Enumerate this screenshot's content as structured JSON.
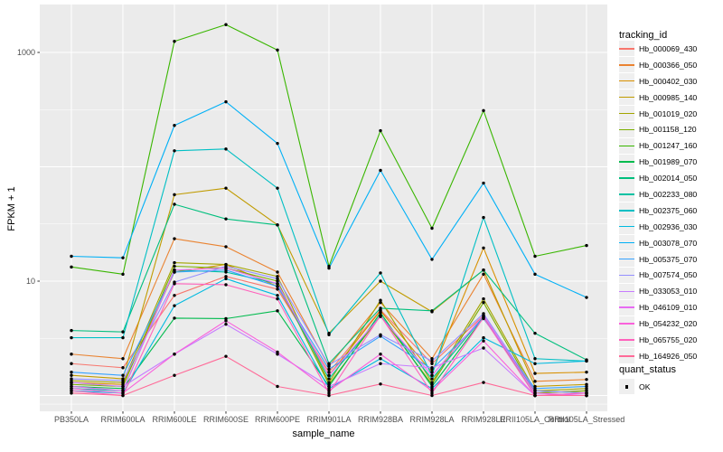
{
  "chart_data": {
    "type": "line",
    "title": "",
    "ylabel": "FPKM + 1",
    "xlabel": "sample_name",
    "y_scale": "log10",
    "ylim": [
      0.72,
      2600
    ],
    "y_tick_labels": [
      "1000",
      "10"
    ],
    "y_tick_values": [
      1000,
      10
    ],
    "y_gridlines_major": [
      1000,
      100,
      10,
      1
    ],
    "y_gridlines_minor": [
      316.2,
      31.62,
      3.162,
      0.84
    ],
    "grid": true,
    "legend_position": "right",
    "legend_title": "tracking_id",
    "point_legend": {
      "title": "quant_status",
      "items": [
        "OK"
      ]
    },
    "point_color": "#000000",
    "panel_bg": "#EBEBEB",
    "grid_color": "#FFFFFF",
    "tick_text_color": "#4D4D4D",
    "tick_mark_color": "#333333",
    "legend_key_bg": "#EFEFEF",
    "categories": [
      "PB350LA",
      "RRIM600LA",
      "RRIM600LE",
      "RRIM600SE",
      "RRIM600PE",
      "RRIM901LA",
      "RRIM928BA",
      "RRIM928LA",
      "RRIM928LE",
      "RRII105LA_Control",
      "RRII105LA_Stressed"
    ],
    "series": [
      {
        "name": "Hb_000069_430",
        "color": "#F8766D",
        "values": [
          1.9,
          1.75,
          7.5,
          11,
          8.5,
          1.6,
          5.6,
          1.9,
          5.0,
          1.05,
          1.1
        ]
      },
      {
        "name": "Hb_000366_050",
        "color": "#EA8331",
        "values": [
          2.3,
          2.1,
          23.5,
          20,
          12,
          1.8,
          6.5,
          2.1,
          11.5,
          1.33,
          1.38
        ]
      },
      {
        "name": "Hb_000402_030",
        "color": "#D89000",
        "values": [
          1.3,
          1.25,
          12,
          14,
          9,
          1.5,
          5.5,
          1.6,
          19.5,
          1.56,
          1.6
        ]
      },
      {
        "name": "Hb_000985_140",
        "color": "#C09B00",
        "values": [
          1.5,
          1.4,
          57,
          65,
          31,
          3.5,
          10,
          5.4,
          12.5,
          1.2,
          1.25
        ]
      },
      {
        "name": "Hb_001019_020",
        "color": "#A3A500",
        "values": [
          1.35,
          1.3,
          14.5,
          14,
          11,
          1.3,
          6.8,
          1.3,
          7.0,
          1.1,
          1.15
        ]
      },
      {
        "name": "Hb_001158_120",
        "color": "#7CAE00",
        "values": [
          1.25,
          1.2,
          13.5,
          13,
          10,
          1.25,
          5.0,
          1.25,
          6.5,
          1.05,
          1.1
        ]
      },
      {
        "name": "Hb_001247_160",
        "color": "#39B600",
        "values": [
          13.3,
          11.5,
          1250,
          1750,
          1050,
          13.5,
          207,
          29,
          310,
          16.5,
          20.5
        ]
      },
      {
        "name": "Hb_001989_070",
        "color": "#00BB4E",
        "values": [
          1.2,
          1.15,
          4.75,
          4.7,
          5.5,
          1.2,
          5.3,
          1.2,
          4.8,
          1.1,
          1.05
        ]
      },
      {
        "name": "Hb_002014_050",
        "color": "#00BF7D",
        "values": [
          3.7,
          3.6,
          47,
          35,
          31,
          1.9,
          5.8,
          5.5,
          12.5,
          3.5,
          2.05
        ]
      },
      {
        "name": "Hb_002233_080",
        "color": "#00C1A3",
        "values": [
          1.15,
          1.1,
          12.5,
          12,
          9.5,
          1.4,
          5.0,
          1.4,
          4.9,
          1.0,
          1.0
        ]
      },
      {
        "name": "Hb_002375_060",
        "color": "#00BFC4",
        "values": [
          3.2,
          3.2,
          138,
          143,
          65,
          3.4,
          11.8,
          1.5,
          36,
          2.1,
          2.0
        ]
      },
      {
        "name": "Hb_002936_030",
        "color": "#00BAE0",
        "values": [
          1.1,
          1.05,
          6.1,
          10.5,
          7.5,
          1.15,
          2.1,
          1.15,
          3.2,
          1.9,
          2.0
        ]
      },
      {
        "name": "Hb_003078_070",
        "color": "#00B0F6",
        "values": [
          16.5,
          16,
          230,
          370,
          160,
          13,
          93,
          15.5,
          72,
          11.5,
          7.2
        ]
      },
      {
        "name": "Hb_005375_070",
        "color": "#35A2FF",
        "values": [
          1.6,
          1.5,
          12,
          12.5,
          9,
          1.7,
          3.3,
          1.7,
          4.7,
          1.15,
          1.2
        ]
      },
      {
        "name": "Hb_007574_050",
        "color": "#9590FF",
        "values": [
          1.4,
          1.35,
          9.8,
          13.5,
          10.5,
          1.85,
          3.4,
          2.0,
          5.2,
          1.1,
          1.05
        ]
      },
      {
        "name": "Hb_033053_010",
        "color": "#C77CFF",
        "values": [
          1.3,
          1.2,
          2.3,
          4.2,
          2.3,
          1.2,
          1.9,
          1.75,
          2.6,
          1.0,
          1.05
        ]
      },
      {
        "name": "Hb_046109_010",
        "color": "#E76BF3",
        "values": [
          1.2,
          1.1,
          12.5,
          13,
          9.5,
          1.5,
          4.9,
          1.5,
          5.0,
          1.05,
          1.0
        ]
      },
      {
        "name": "Hb_054232_020",
        "color": "#FA62DB",
        "values": [
          1.15,
          1.05,
          2.3,
          4.5,
          2.4,
          1.1,
          2.3,
          1.1,
          3.0,
          1.0,
          1.0
        ]
      },
      {
        "name": "Hb_065755_020",
        "color": "#FF62BC",
        "values": [
          1.1,
          1.0,
          9.5,
          9.3,
          7.0,
          1.05,
          5.0,
          1.05,
          4.8,
          1.0,
          1.05
        ]
      },
      {
        "name": "Hb_164926_050",
        "color": "#FF6A98",
        "values": [
          1.05,
          1.0,
          1.5,
          2.2,
          1.2,
          1.0,
          1.26,
          1.0,
          1.3,
          1.0,
          1.0
        ]
      }
    ]
  }
}
